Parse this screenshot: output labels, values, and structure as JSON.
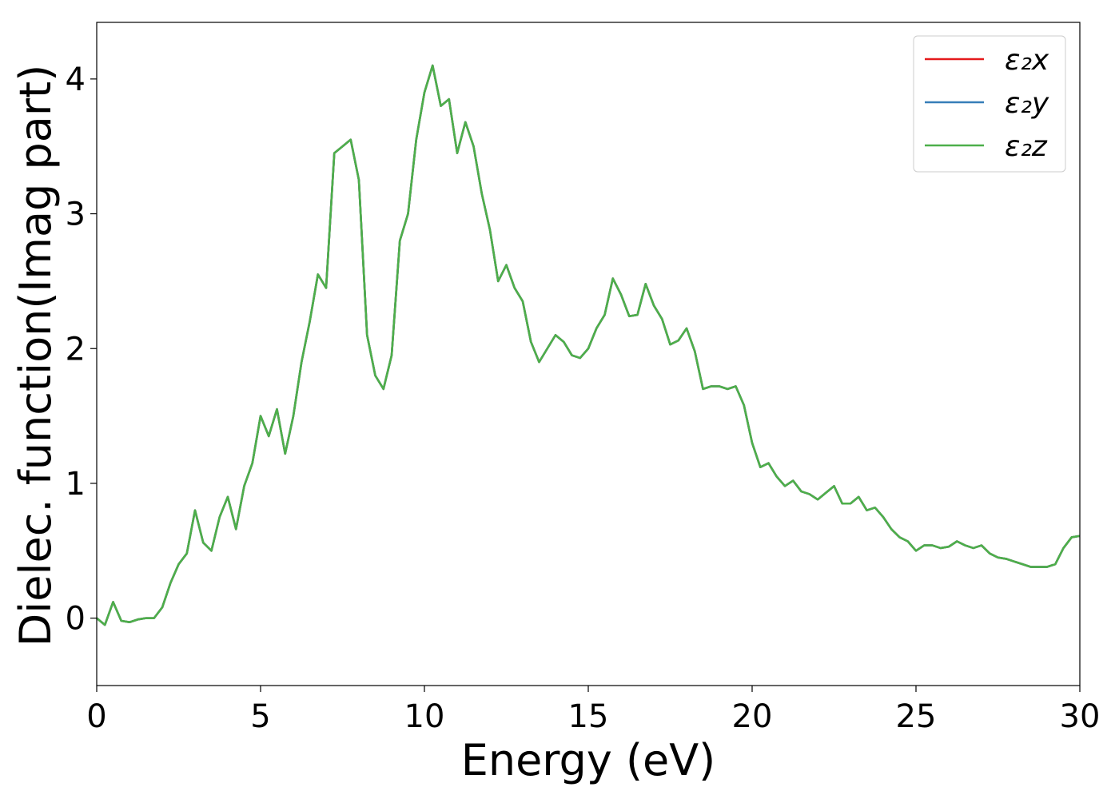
{
  "chart_data": {
    "type": "line",
    "xlabel": "Energy (eV)",
    "ylabel": "Dielec. function(Imag part)",
    "xlim": [
      0,
      30
    ],
    "ylim": [
      -0.5,
      4.42
    ],
    "xticks": [
      0,
      5,
      10,
      15,
      20,
      25,
      30
    ],
    "yticks": [
      0,
      1,
      2,
      3,
      4
    ],
    "legend": "upper right",
    "x": [
      0,
      0.25,
      0.5,
      0.75,
      1,
      1.25,
      1.5,
      1.75,
      2,
      2.25,
      2.5,
      2.75,
      3,
      3.25,
      3.5,
      3.75,
      4,
      4.25,
      4.5,
      4.75,
      5,
      5.25,
      5.5,
      5.75,
      6,
      6.25,
      6.5,
      6.75,
      7,
      7.25,
      7.5,
      7.75,
      8,
      8.25,
      8.5,
      8.75,
      9,
      9.25,
      9.5,
      9.75,
      10,
      10.25,
      10.5,
      10.75,
      11,
      11.25,
      11.5,
      11.75,
      12,
      12.25,
      12.5,
      12.75,
      13,
      13.25,
      13.5,
      13.75,
      14,
      14.25,
      14.5,
      14.75,
      15,
      15.25,
      15.5,
      15.75,
      16,
      16.25,
      16.5,
      16.75,
      17,
      17.25,
      17.5,
      17.75,
      18,
      18.25,
      18.5,
      18.75,
      19,
      19.25,
      19.5,
      19.75,
      20,
      20.25,
      20.5,
      20.75,
      21,
      21.25,
      21.5,
      21.75,
      22,
      22.25,
      22.5,
      22.75,
      23,
      23.25,
      23.5,
      23.75,
      24,
      24.25,
      24.5,
      24.75,
      25,
      25.25,
      25.5,
      25.75,
      26,
      26.25,
      26.5,
      26.75,
      27,
      27.25,
      27.5,
      27.75,
      28,
      28.25,
      28.5,
      28.75,
      29,
      29.25,
      29.5,
      29.75,
      30
    ],
    "series": [
      {
        "name": "ε₂x",
        "color": "#e41a1c",
        "values": [
          0,
          -0.05,
          0.12,
          -0.02,
          -0.03,
          -0.01,
          0,
          0,
          0.08,
          0.26,
          0.4,
          0.48,
          0.8,
          0.56,
          0.5,
          0.75,
          0.9,
          0.66,
          0.98,
          1.15,
          1.5,
          1.35,
          1.55,
          1.22,
          1.5,
          1.9,
          2.2,
          2.55,
          2.45,
          3.45,
          3.5,
          3.55,
          3.25,
          2.1,
          1.8,
          1.7,
          1.95,
          2.8,
          3,
          3.55,
          3.9,
          4.1,
          3.8,
          3.85,
          3.45,
          3.68,
          3.5,
          3.15,
          2.88,
          2.5,
          2.62,
          2.45,
          2.35,
          2.05,
          1.9,
          2,
          2.1,
          2.05,
          1.95,
          1.93,
          2,
          2.15,
          2.25,
          2.52,
          2.4,
          2.24,
          2.25,
          2.48,
          2.32,
          2.22,
          2.03,
          2.06,
          2.15,
          1.98,
          1.7,
          1.72,
          1.72,
          1.7,
          1.72,
          1.58,
          1.3,
          1.12,
          1.15,
          1.05,
          0.98,
          1.02,
          0.94,
          0.92,
          0.88,
          0.93,
          0.98,
          0.85,
          0.85,
          0.9,
          0.8,
          0.82,
          0.75,
          0.66,
          0.6,
          0.57,
          0.5,
          0.54,
          0.54,
          0.52,
          0.53,
          0.57,
          0.54,
          0.52,
          0.54,
          0.48,
          0.45,
          0.44,
          0.42,
          0.4,
          0.38,
          0.38,
          0.38,
          0.4,
          0.52,
          0.6,
          0.61
        ]
      },
      {
        "name": "ε₂y",
        "color": "#377eb8",
        "values": [
          0,
          -0.05,
          0.12,
          -0.02,
          -0.03,
          -0.01,
          0,
          0,
          0.08,
          0.26,
          0.4,
          0.48,
          0.8,
          0.56,
          0.5,
          0.75,
          0.9,
          0.66,
          0.98,
          1.15,
          1.5,
          1.35,
          1.55,
          1.22,
          1.5,
          1.9,
          2.2,
          2.55,
          2.45,
          3.45,
          3.5,
          3.55,
          3.25,
          2.1,
          1.8,
          1.7,
          1.95,
          2.8,
          3,
          3.55,
          3.9,
          4.1,
          3.8,
          3.85,
          3.45,
          3.68,
          3.5,
          3.15,
          2.88,
          2.5,
          2.62,
          2.45,
          2.35,
          2.05,
          1.9,
          2,
          2.1,
          2.05,
          1.95,
          1.93,
          2,
          2.15,
          2.25,
          2.52,
          2.4,
          2.24,
          2.25,
          2.48,
          2.32,
          2.22,
          2.03,
          2.06,
          2.15,
          1.98,
          1.7,
          1.72,
          1.72,
          1.7,
          1.72,
          1.58,
          1.3,
          1.12,
          1.15,
          1.05,
          0.98,
          1.02,
          0.94,
          0.92,
          0.88,
          0.93,
          0.98,
          0.85,
          0.85,
          0.9,
          0.8,
          0.82,
          0.75,
          0.66,
          0.6,
          0.57,
          0.5,
          0.54,
          0.54,
          0.52,
          0.53,
          0.57,
          0.54,
          0.52,
          0.54,
          0.48,
          0.45,
          0.44,
          0.42,
          0.4,
          0.38,
          0.38,
          0.38,
          0.4,
          0.52,
          0.6,
          0.61
        ]
      },
      {
        "name": "ε₂z",
        "color": "#4daf4a",
        "values": [
          0,
          -0.05,
          0.12,
          -0.02,
          -0.03,
          -0.01,
          0,
          0,
          0.08,
          0.26,
          0.4,
          0.48,
          0.8,
          0.56,
          0.5,
          0.75,
          0.9,
          0.66,
          0.98,
          1.15,
          1.5,
          1.35,
          1.55,
          1.22,
          1.5,
          1.9,
          2.2,
          2.55,
          2.45,
          3.45,
          3.5,
          3.55,
          3.25,
          2.1,
          1.8,
          1.7,
          1.95,
          2.8,
          3,
          3.55,
          3.9,
          4.1,
          3.8,
          3.85,
          3.45,
          3.68,
          3.5,
          3.15,
          2.88,
          2.5,
          2.62,
          2.45,
          2.35,
          2.05,
          1.9,
          2,
          2.1,
          2.05,
          1.95,
          1.93,
          2,
          2.15,
          2.25,
          2.52,
          2.4,
          2.24,
          2.25,
          2.48,
          2.32,
          2.22,
          2.03,
          2.06,
          2.15,
          1.98,
          1.7,
          1.72,
          1.72,
          1.7,
          1.72,
          1.58,
          1.3,
          1.12,
          1.15,
          1.05,
          0.98,
          1.02,
          0.94,
          0.92,
          0.88,
          0.93,
          0.98,
          0.85,
          0.85,
          0.9,
          0.8,
          0.82,
          0.75,
          0.66,
          0.6,
          0.57,
          0.5,
          0.54,
          0.54,
          0.52,
          0.53,
          0.57,
          0.54,
          0.52,
          0.54,
          0.48,
          0.45,
          0.44,
          0.42,
          0.4,
          0.38,
          0.38,
          0.38,
          0.4,
          0.52,
          0.6,
          0.61
        ]
      }
    ]
  }
}
